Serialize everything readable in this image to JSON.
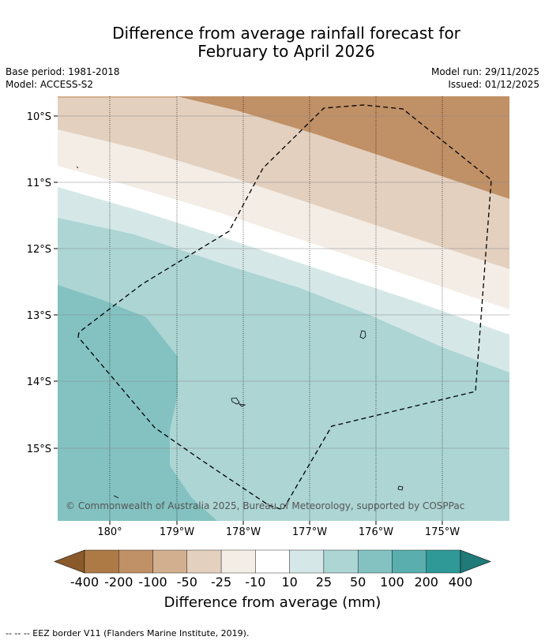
{
  "header": {
    "title_line1": "Difference from average rainfall forecast for",
    "title_line2": "February to April 2026",
    "base_period": "Base period: 1981-2018",
    "model": "Model: ACCESS-S2",
    "model_run": "Model run: 29/11/2025",
    "issued": "Issued: 01/12/2025"
  },
  "map": {
    "lat_labels": [
      "10°S",
      "11°S",
      "12°S",
      "13°S",
      "14°S",
      "15°S"
    ],
    "lon_labels": [
      "180°",
      "179°W",
      "178°W",
      "177°W",
      "176°W",
      "175°W"
    ],
    "copyright": "© Commonwealth of Australia 2025, Bureau of Meteorology, supported by COSPPac"
  },
  "colorbar": {
    "tick_labels": [
      "-400",
      "-200",
      "-100",
      "-50",
      "-25",
      "-10",
      "10",
      "25",
      "50",
      "100",
      "200",
      "400"
    ],
    "colors": [
      "#8a5a2b",
      "#ad7a45",
      "#c09066",
      "#d2b08f",
      "#e3d0bf",
      "#f3ede6",
      "#ffffff",
      "#d5e8e7",
      "#acd5d4",
      "#83c2c1",
      "#5aaeae",
      "#2e9996",
      "#1f7a78"
    ],
    "label": "Difference from average (mm)"
  },
  "footnote": "--  --  -- EEZ border V11 (Flanders Marine Institute, 2019)."
}
